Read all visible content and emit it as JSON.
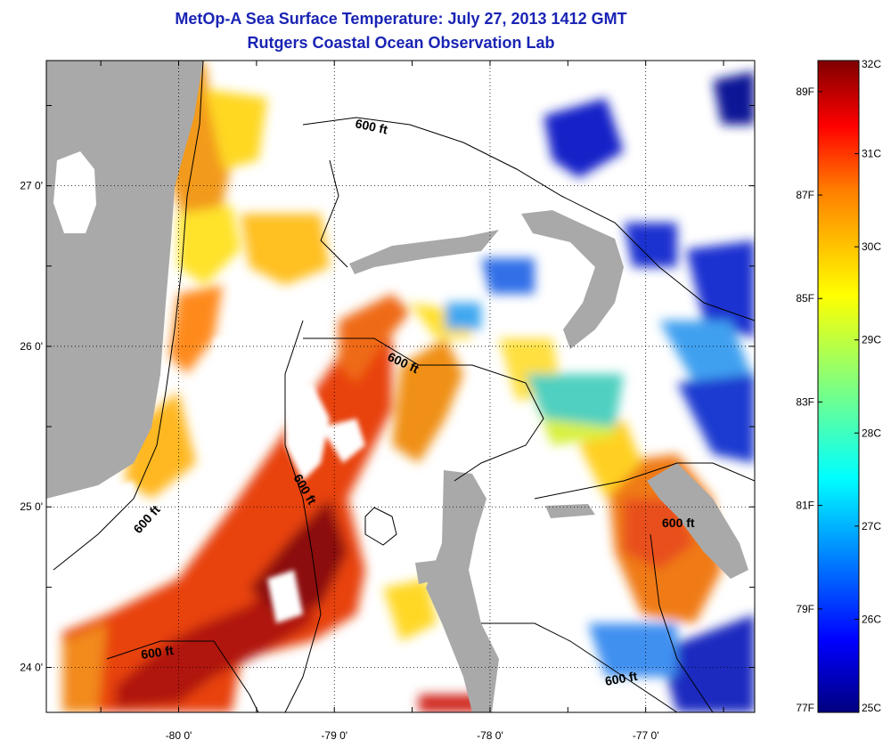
{
  "title": {
    "line1": "MetOp-A Sea Surface Temperature:  July 27, 2013 1412 GMT",
    "line2": "Rutgers Coastal Ocean Observation Lab"
  },
  "map": {
    "lon_range": [
      -80.85,
      -76.3
    ],
    "lat_range": [
      23.72,
      27.78
    ],
    "lon_ticks": [
      {
        "value": -80,
        "label": "-80 0'"
      },
      {
        "value": -79,
        "label": "-79 0'"
      },
      {
        "value": -78,
        "label": "-78 0'"
      },
      {
        "value": -77,
        "label": "-77 0'"
      }
    ],
    "lat_ticks": [
      {
        "value": 27,
        "label": "27 0'"
      },
      {
        "value": 26,
        "label": "26 0'"
      },
      {
        "value": 25,
        "label": "25 0'"
      },
      {
        "value": 24,
        "label": "24 0'"
      }
    ],
    "contour_labels": [
      "600 ft",
      "600 ft",
      "600 ft",
      "600 ft",
      "600 ft",
      "600 ft"
    ],
    "colors": {
      "land": "#a9a9a9",
      "cloud": "#ffffff",
      "contour": "#000000"
    }
  },
  "colorbar": {
    "range_c": [
      25,
      32
    ],
    "celsius_labels": [
      "32C",
      "31C",
      "30C",
      "29C",
      "28C",
      "27C",
      "26C",
      "25C"
    ],
    "fahrenheit_labels": [
      "89F",
      "87F",
      "85F",
      "83F",
      "81F",
      "79F",
      "77F"
    ],
    "colors": [
      "#00007f",
      "#0000ff",
      "#007fff",
      "#00ffff",
      "#7fff7f",
      "#ffff00",
      "#ff7f00",
      "#ff0000",
      "#7f0000"
    ]
  }
}
